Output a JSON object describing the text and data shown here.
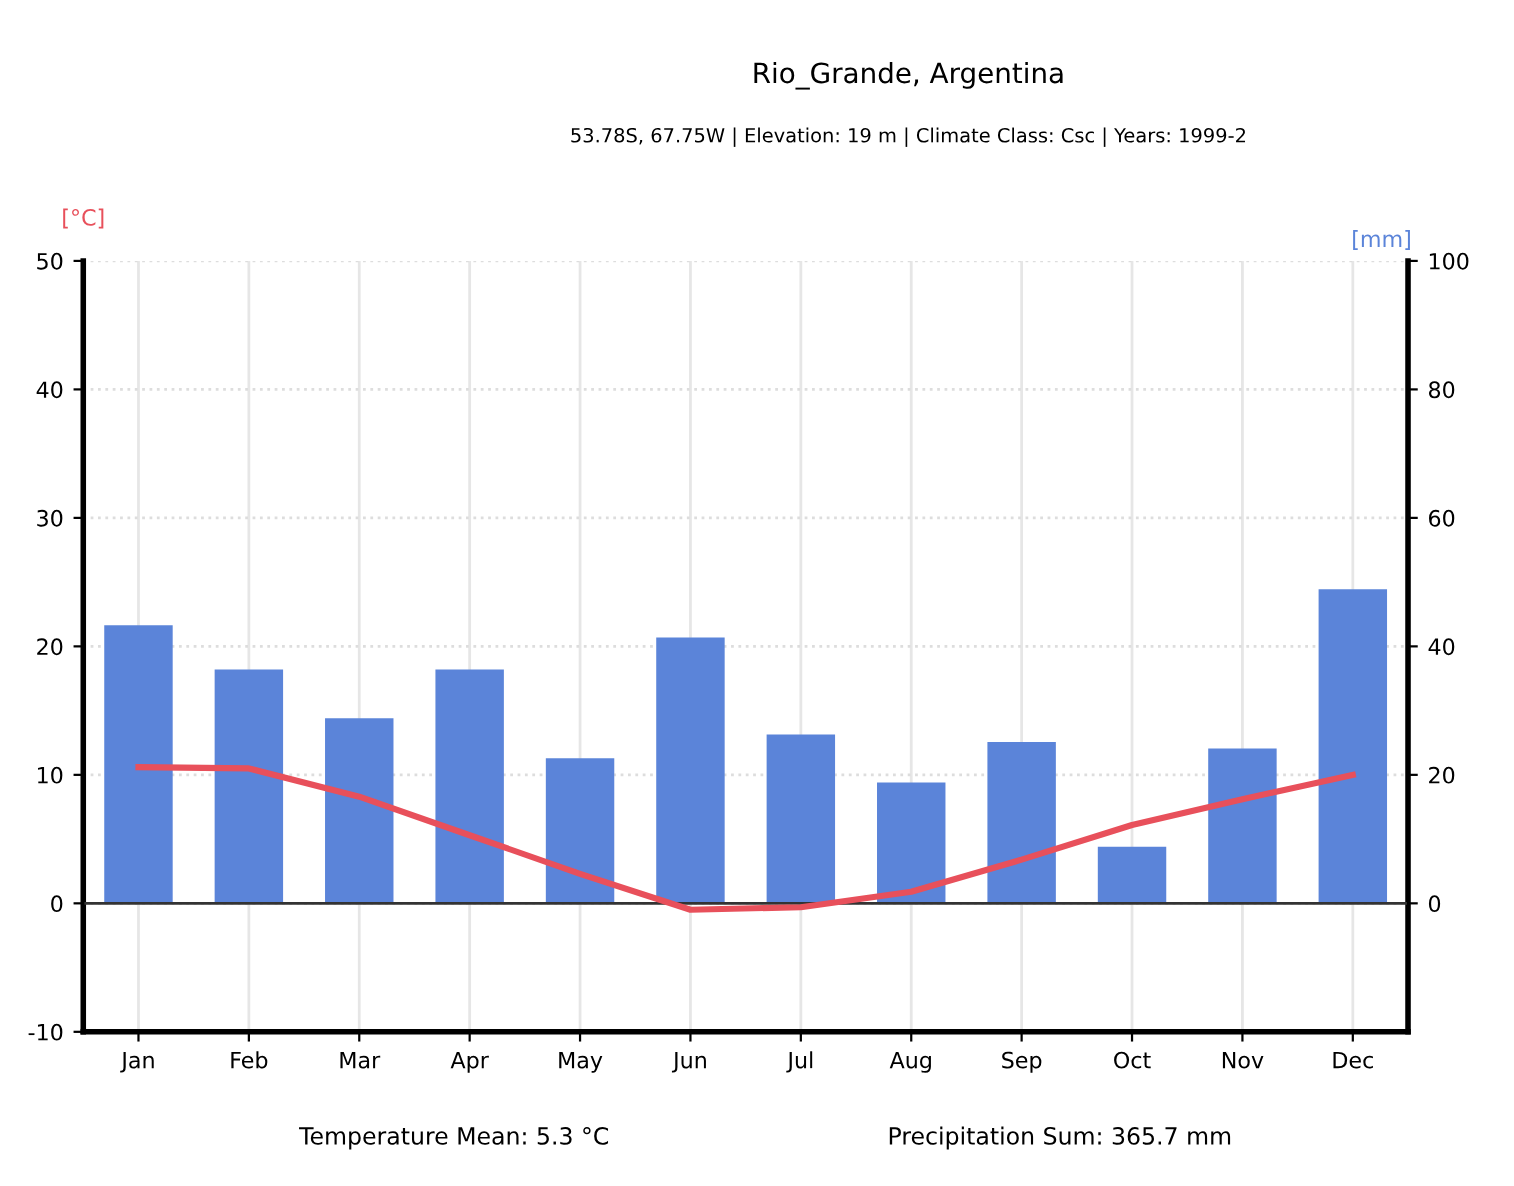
{
  "chart_data": {
    "type": "bar",
    "title": "Rio_Grande, Argentina",
    "subtitle": "53.78S, 67.75W | Elevation: 19 m | Climate Class: Csc | Years: 1999-2",
    "categories": [
      "Jan",
      "Feb",
      "Mar",
      "Apr",
      "May",
      "Jun",
      "Jul",
      "Aug",
      "Sep",
      "Oct",
      "Nov",
      "Dec"
    ],
    "series": [
      {
        "axis": "y2",
        "color": "#5b84d9",
        "values": [
          43.3,
          36.4,
          28.8,
          36.4,
          22.6,
          41.4,
          26.3,
          18.8,
          25.1,
          8.8,
          24.1,
          48.9
        ]
      },
      {
        "type": "line",
        "axis": "y",
        "color": "#e8505b",
        "values": [
          10.6,
          10.5,
          8.3,
          5.3,
          2.3,
          -0.5,
          -0.3,
          0.9,
          3.4,
          6.1,
          8.1,
          10.0
        ]
      }
    ],
    "ylabel": "[°C]",
    "y2label": "[mm]",
    "ylim": [
      -10,
      50
    ],
    "yticks": [
      -10,
      0,
      10,
      20,
      30,
      40,
      50
    ],
    "y2lim": [
      -20,
      100
    ],
    "y2ticks": [
      0,
      20,
      40,
      60,
      80,
      100
    ],
    "grid": true,
    "annotations": [
      "Temperature Mean: 5.3 °C",
      "Precipitation Sum: 365.7 mm"
    ]
  }
}
